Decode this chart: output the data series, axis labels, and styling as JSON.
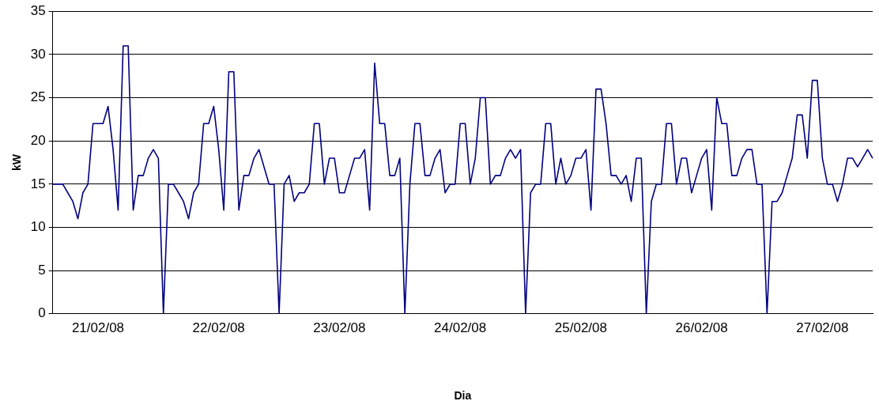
{
  "chart_data": {
    "type": "line",
    "xlabel": "Dia",
    "ylabel": "kW",
    "categories": [
      null,
      null,
      null,
      null,
      null,
      null,
      null,
      null,
      null,
      "21/02/08",
      null,
      null,
      null,
      null,
      null,
      null,
      null,
      null,
      null,
      null,
      null,
      null,
      null,
      null,
      null,
      null,
      null,
      null,
      null,
      null,
      null,
      null,
      null,
      "22/02/08",
      null,
      null,
      null,
      null,
      null,
      null,
      null,
      null,
      null,
      null,
      null,
      null,
      null,
      null,
      null,
      null,
      null,
      null,
      null,
      null,
      null,
      null,
      null,
      "23/02/08",
      null,
      null,
      null,
      null,
      null,
      null,
      null,
      null,
      null,
      null,
      null,
      null,
      null,
      null,
      null,
      null,
      null,
      null,
      null,
      null,
      null,
      null,
      null,
      "24/02/08",
      null,
      null,
      null,
      null,
      null,
      null,
      null,
      null,
      null,
      null,
      null,
      null,
      null,
      null,
      null,
      null,
      null,
      null,
      null,
      null,
      null,
      null,
      null,
      "25/02/08",
      null,
      null,
      null,
      null,
      null,
      null,
      null,
      null,
      null,
      null,
      null,
      null,
      null,
      null,
      null,
      null,
      null,
      null,
      null,
      null,
      null,
      null,
      null,
      "26/02/08",
      null,
      null,
      null,
      null,
      null,
      null,
      null,
      null,
      null,
      null,
      null,
      null,
      null,
      null,
      null,
      null,
      null,
      null,
      null,
      null,
      null,
      null,
      null,
      "27/02/08",
      null,
      null,
      null,
      null,
      null,
      null,
      null,
      null,
      null,
      null
    ],
    "series": [
      {
        "color": "#000080",
        "values": [
          15,
          15,
          15,
          14,
          13,
          11,
          14,
          15,
          22,
          22,
          22,
          24,
          19,
          12,
          31,
          31,
          12,
          16,
          16,
          18,
          19,
          18,
          0,
          15,
          15,
          14,
          13,
          11,
          14,
          15,
          22,
          22,
          24,
          19,
          12,
          28,
          28,
          12,
          16,
          16,
          18,
          19,
          17,
          15,
          15,
          0,
          15,
          16,
          13,
          14,
          14,
          15,
          22,
          22,
          15,
          18,
          18,
          14,
          14,
          16,
          18,
          18,
          19,
          12,
          29,
          22,
          22,
          16,
          16,
          18,
          0,
          15,
          22,
          22,
          16,
          16,
          18,
          19,
          14,
          15,
          15,
          22,
          22,
          15,
          18,
          25,
          25,
          15,
          16,
          16,
          18,
          19,
          18,
          19,
          0,
          14,
          15,
          15,
          22,
          22,
          15,
          18,
          15,
          16,
          18,
          18,
          19,
          12,
          26,
          26,
          22,
          16,
          16,
          15,
          16,
          13,
          18,
          18,
          0,
          13,
          15,
          15,
          22,
          22,
          15,
          18,
          18,
          14,
          16,
          18,
          19,
          12,
          25,
          22,
          22,
          16,
          16,
          18,
          19,
          19,
          15,
          15,
          0,
          13,
          13,
          14,
          16,
          18,
          23,
          23,
          18,
          27,
          27,
          18,
          15,
          15,
          13,
          15,
          18,
          18,
          17,
          18,
          19,
          18
        ]
      }
    ],
    "ylim": [
      0,
      35
    ],
    "yticks": [
      0,
      5,
      10,
      15,
      20,
      25,
      30,
      35
    ],
    "grid": "y",
    "legend": false,
    "marker": "none",
    "line_style": "solid"
  }
}
